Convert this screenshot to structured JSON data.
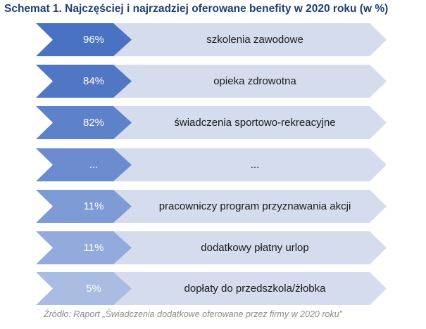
{
  "title": "Schemat 1. Najczęściej i najrzadziej oferowane benefity w 2020 roku (w %)",
  "source": "Źródło: Raport „Świadczenia dodatkowe oferowane przez firmy w 2020 roku”",
  "colors": {
    "chevron_dark": "#4a72c2",
    "chevron_light": "#a9bde3",
    "bar": "#d5dcee",
    "title": "#1f3f74"
  },
  "chart_data": {
    "type": "table",
    "rows": [
      {
        "value": "96%",
        "label": "szkolenia zawodowe"
      },
      {
        "value": "84%",
        "label": "opieka zdrowotna"
      },
      {
        "value": "82%",
        "label": "świadczenia sportowo-rekreacyjne"
      },
      {
        "value": "...",
        "label": "..."
      },
      {
        "value": "11%",
        "label": "pracowniczy program przyznawania akcji"
      },
      {
        "value": "11%",
        "label": "dodatkowy płatny urlop"
      },
      {
        "value": "5%",
        "label": "dopłaty do przedszkola/żłobka"
      }
    ]
  }
}
